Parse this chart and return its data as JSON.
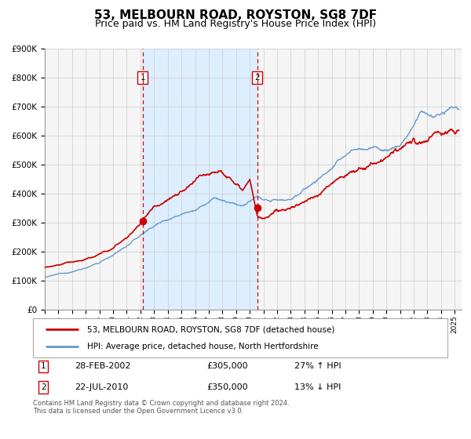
{
  "title": "53, MELBOURN ROAD, ROYSTON, SG8 7DF",
  "subtitle": "Price paid vs. HM Land Registry's House Price Index (HPI)",
  "ylim": [
    0,
    900000
  ],
  "yticks": [
    0,
    100000,
    200000,
    300000,
    400000,
    500000,
    600000,
    700000,
    800000,
    900000
  ],
  "ytick_labels": [
    "£0",
    "£100K",
    "£200K",
    "£300K",
    "£400K",
    "£500K",
    "£600K",
    "£700K",
    "£800K",
    "£900K"
  ],
  "xlim_start": 1995.0,
  "xlim_end": 2025.5,
  "sale1_x": 2002.163,
  "sale1_y": 305000,
  "sale1_label": "1",
  "sale1_date": "28-FEB-2002",
  "sale1_price": "£305,000",
  "sale1_hpi": "27% ↑ HPI",
  "sale2_x": 2010.55,
  "sale2_y": 350000,
  "sale2_label": "2",
  "sale2_date": "22-JUL-2010",
  "sale2_price": "£350,000",
  "sale2_hpi": "13% ↓ HPI",
  "line1_color": "#cc0000",
  "line2_color": "#6699cc",
  "shade_color": "#ddeeff",
  "vline_color": "#cc0000",
  "grid_color": "#cccccc",
  "bg_color": "#f5f5f5",
  "legend_line1": "53, MELBOURN ROAD, ROYSTON, SG8 7DF (detached house)",
  "legend_line2": "HPI: Average price, detached house, North Hertfordshire",
  "footnote": "Contains HM Land Registry data © Crown copyright and database right 2024.\nThis data is licensed under the Open Government Licence v3.0.",
  "title_fontsize": 11,
  "subtitle_fontsize": 9
}
